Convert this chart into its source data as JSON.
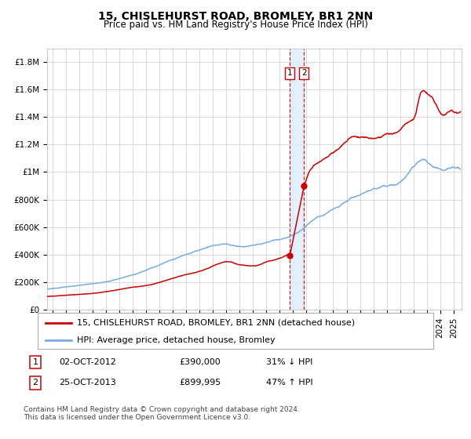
{
  "title": "15, CHISLEHURST ROAD, BROMLEY, BR1 2NN",
  "subtitle": "Price paid vs. HM Land Registry's House Price Index (HPI)",
  "ylim": [
    0,
    1900000
  ],
  "yticks": [
    0,
    200000,
    400000,
    600000,
    800000,
    1000000,
    1200000,
    1400000,
    1600000,
    1800000
  ],
  "ytick_labels": [
    "£0",
    "£200K",
    "£400K",
    "£600K",
    "£800K",
    "£1M",
    "£1.2M",
    "£1.4M",
    "£1.6M",
    "£1.8M"
  ],
  "xstart": 1994.6,
  "xend": 2025.6,
  "sale1_date": 2012.75,
  "sale1_price": 390000,
  "sale1_label": "1",
  "sale1_text": "02-OCT-2012",
  "sale1_price_text": "£390,000",
  "sale1_hpi_text": "31% ↓ HPI",
  "sale2_date": 2013.82,
  "sale2_price": 899995,
  "sale2_label": "2",
  "sale2_text": "25-OCT-2013",
  "sale2_price_text": "£899,995",
  "sale2_hpi_text": "47% ↑ HPI",
  "red_line_color": "#cc0000",
  "blue_line_color": "#7aaadd",
  "grid_color": "#cccccc",
  "background_color": "#ffffff",
  "highlight_color": "#ddeeff",
  "legend_line1": "15, CHISLEHURST ROAD, BROMLEY, BR1 2NN (detached house)",
  "legend_line2": "HPI: Average price, detached house, Bromley",
  "footer": "Contains HM Land Registry data © Crown copyright and database right 2024.\nThis data is licensed under the Open Government Licence v3.0.",
  "title_fontsize": 10,
  "subtitle_fontsize": 8.5,
  "tick_fontsize": 7.5,
  "legend_fontsize": 8,
  "footer_fontsize": 6.5
}
